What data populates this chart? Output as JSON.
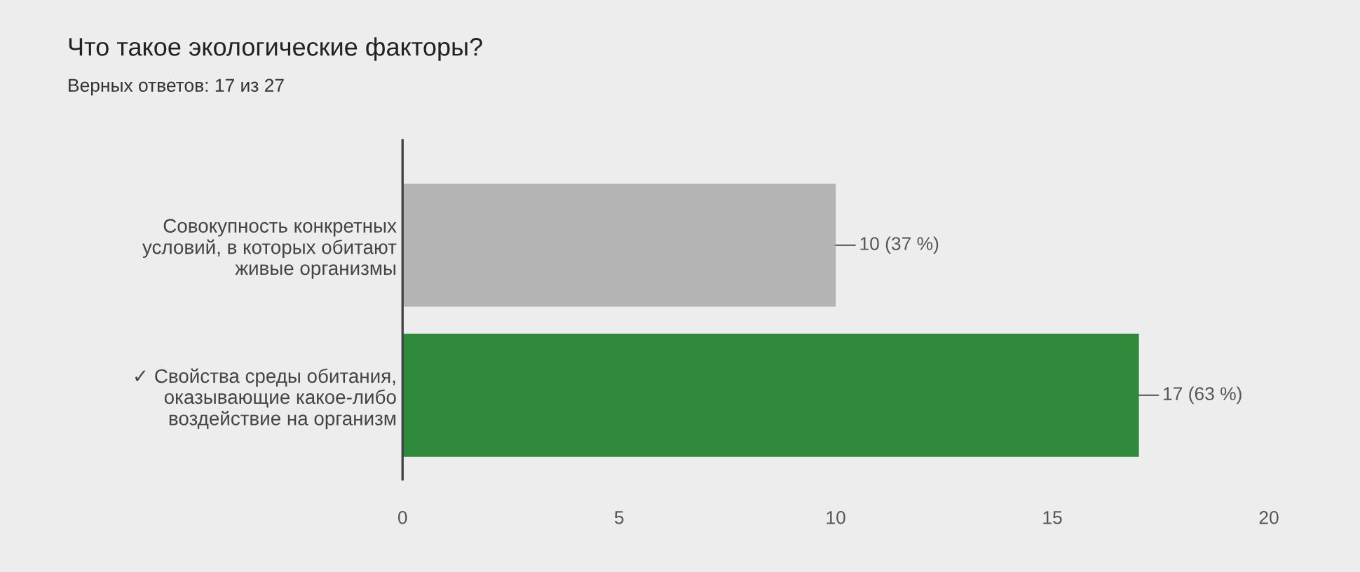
{
  "chart_data": {
    "type": "bar",
    "orientation": "horizontal",
    "title": "Что такое экологические факторы?",
    "subtitle": "Верных ответов: 17 из 27",
    "categories": [
      "Совокупность конкретных\nусловий, в которых обитают\nживые организмы",
      "✓ Свойства среды обитания,\nоказывающие какое-либо\nвоздействие на организм"
    ],
    "values": [
      10,
      17
    ],
    "colors": [
      "#b4b4b4",
      "#2f8a3c"
    ],
    "value_labels": [
      "10 (37 %)",
      "17 (63 %)"
    ],
    "xlim": [
      0,
      20
    ],
    "xticks": [
      0,
      5,
      10,
      15,
      20
    ],
    "grid": false
  }
}
